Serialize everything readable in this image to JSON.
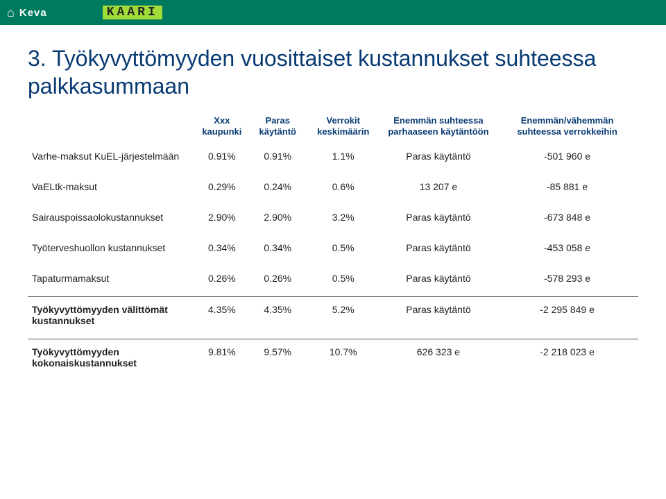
{
  "brand": {
    "keva": "Keva",
    "kaari": "KAARI"
  },
  "title": "3. Työkyvyttömyyden vuosittaiset kustannukset suhteessa palkkasummaan",
  "columns": {
    "c1": "Xxx kaupunki",
    "c2": "Paras käytäntö",
    "c3": "Verrokit keskimäärin",
    "c4": "Enemmän suhteessa parhaaseen käytäntöön",
    "c5": "Enemmän/vähemmän suhteessa verrokkeihin"
  },
  "rows": {
    "r1": {
      "label": "Varhe-maksut KuEL-järjestelmään",
      "c1": "0.91%",
      "c2": "0.91%",
      "c3": "1.1%",
      "c4": "Paras käytäntö",
      "c5": "-501 960 e"
    },
    "r2": {
      "label": "VaELtk-maksut",
      "c1": "0.29%",
      "c2": "0.24%",
      "c3": "0.6%",
      "c4": "13 207 e",
      "c5": "-85 881 e"
    },
    "r3": {
      "label": "Sairauspoissaolokustannukset",
      "c1": "2.90%",
      "c2": "2.90%",
      "c3": "3.2%",
      "c4": "Paras käytäntö",
      "c5": "-673 848 e"
    },
    "r4": {
      "label": "Työterveshuollon kustannukset",
      "c1": "0.34%",
      "c2": "0.34%",
      "c3": "0.5%",
      "c4": "Paras käytäntö",
      "c5": "-453 058 e"
    },
    "r5": {
      "label": "Tapaturmamaksut",
      "c1": "0.26%",
      "c2": "0.26%",
      "c3": "0.5%",
      "c4": "Paras käytäntö",
      "c5": "-578 293 e"
    },
    "r6": {
      "label": "Työkyvyttömyyden välittömät kustannukset",
      "c1": "4.35%",
      "c2": "4.35%",
      "c3": "5.2%",
      "c4": "Paras käytäntö",
      "c5": "-2 295 849 e"
    },
    "r7": {
      "label": "Työkyvyttömyyden kokonaiskustannukset",
      "c1": "9.81%",
      "c2": "9.57%",
      "c3": "10.7%",
      "c4": "626 323 e",
      "c5": "-2 218 023 e"
    }
  },
  "colors": {
    "topbar": "#007a5e",
    "kaari_bg": "#9fdc3a",
    "heading": "#083a73",
    "text": "#222222",
    "separator": "#555555",
    "background": "#ffffff"
  }
}
